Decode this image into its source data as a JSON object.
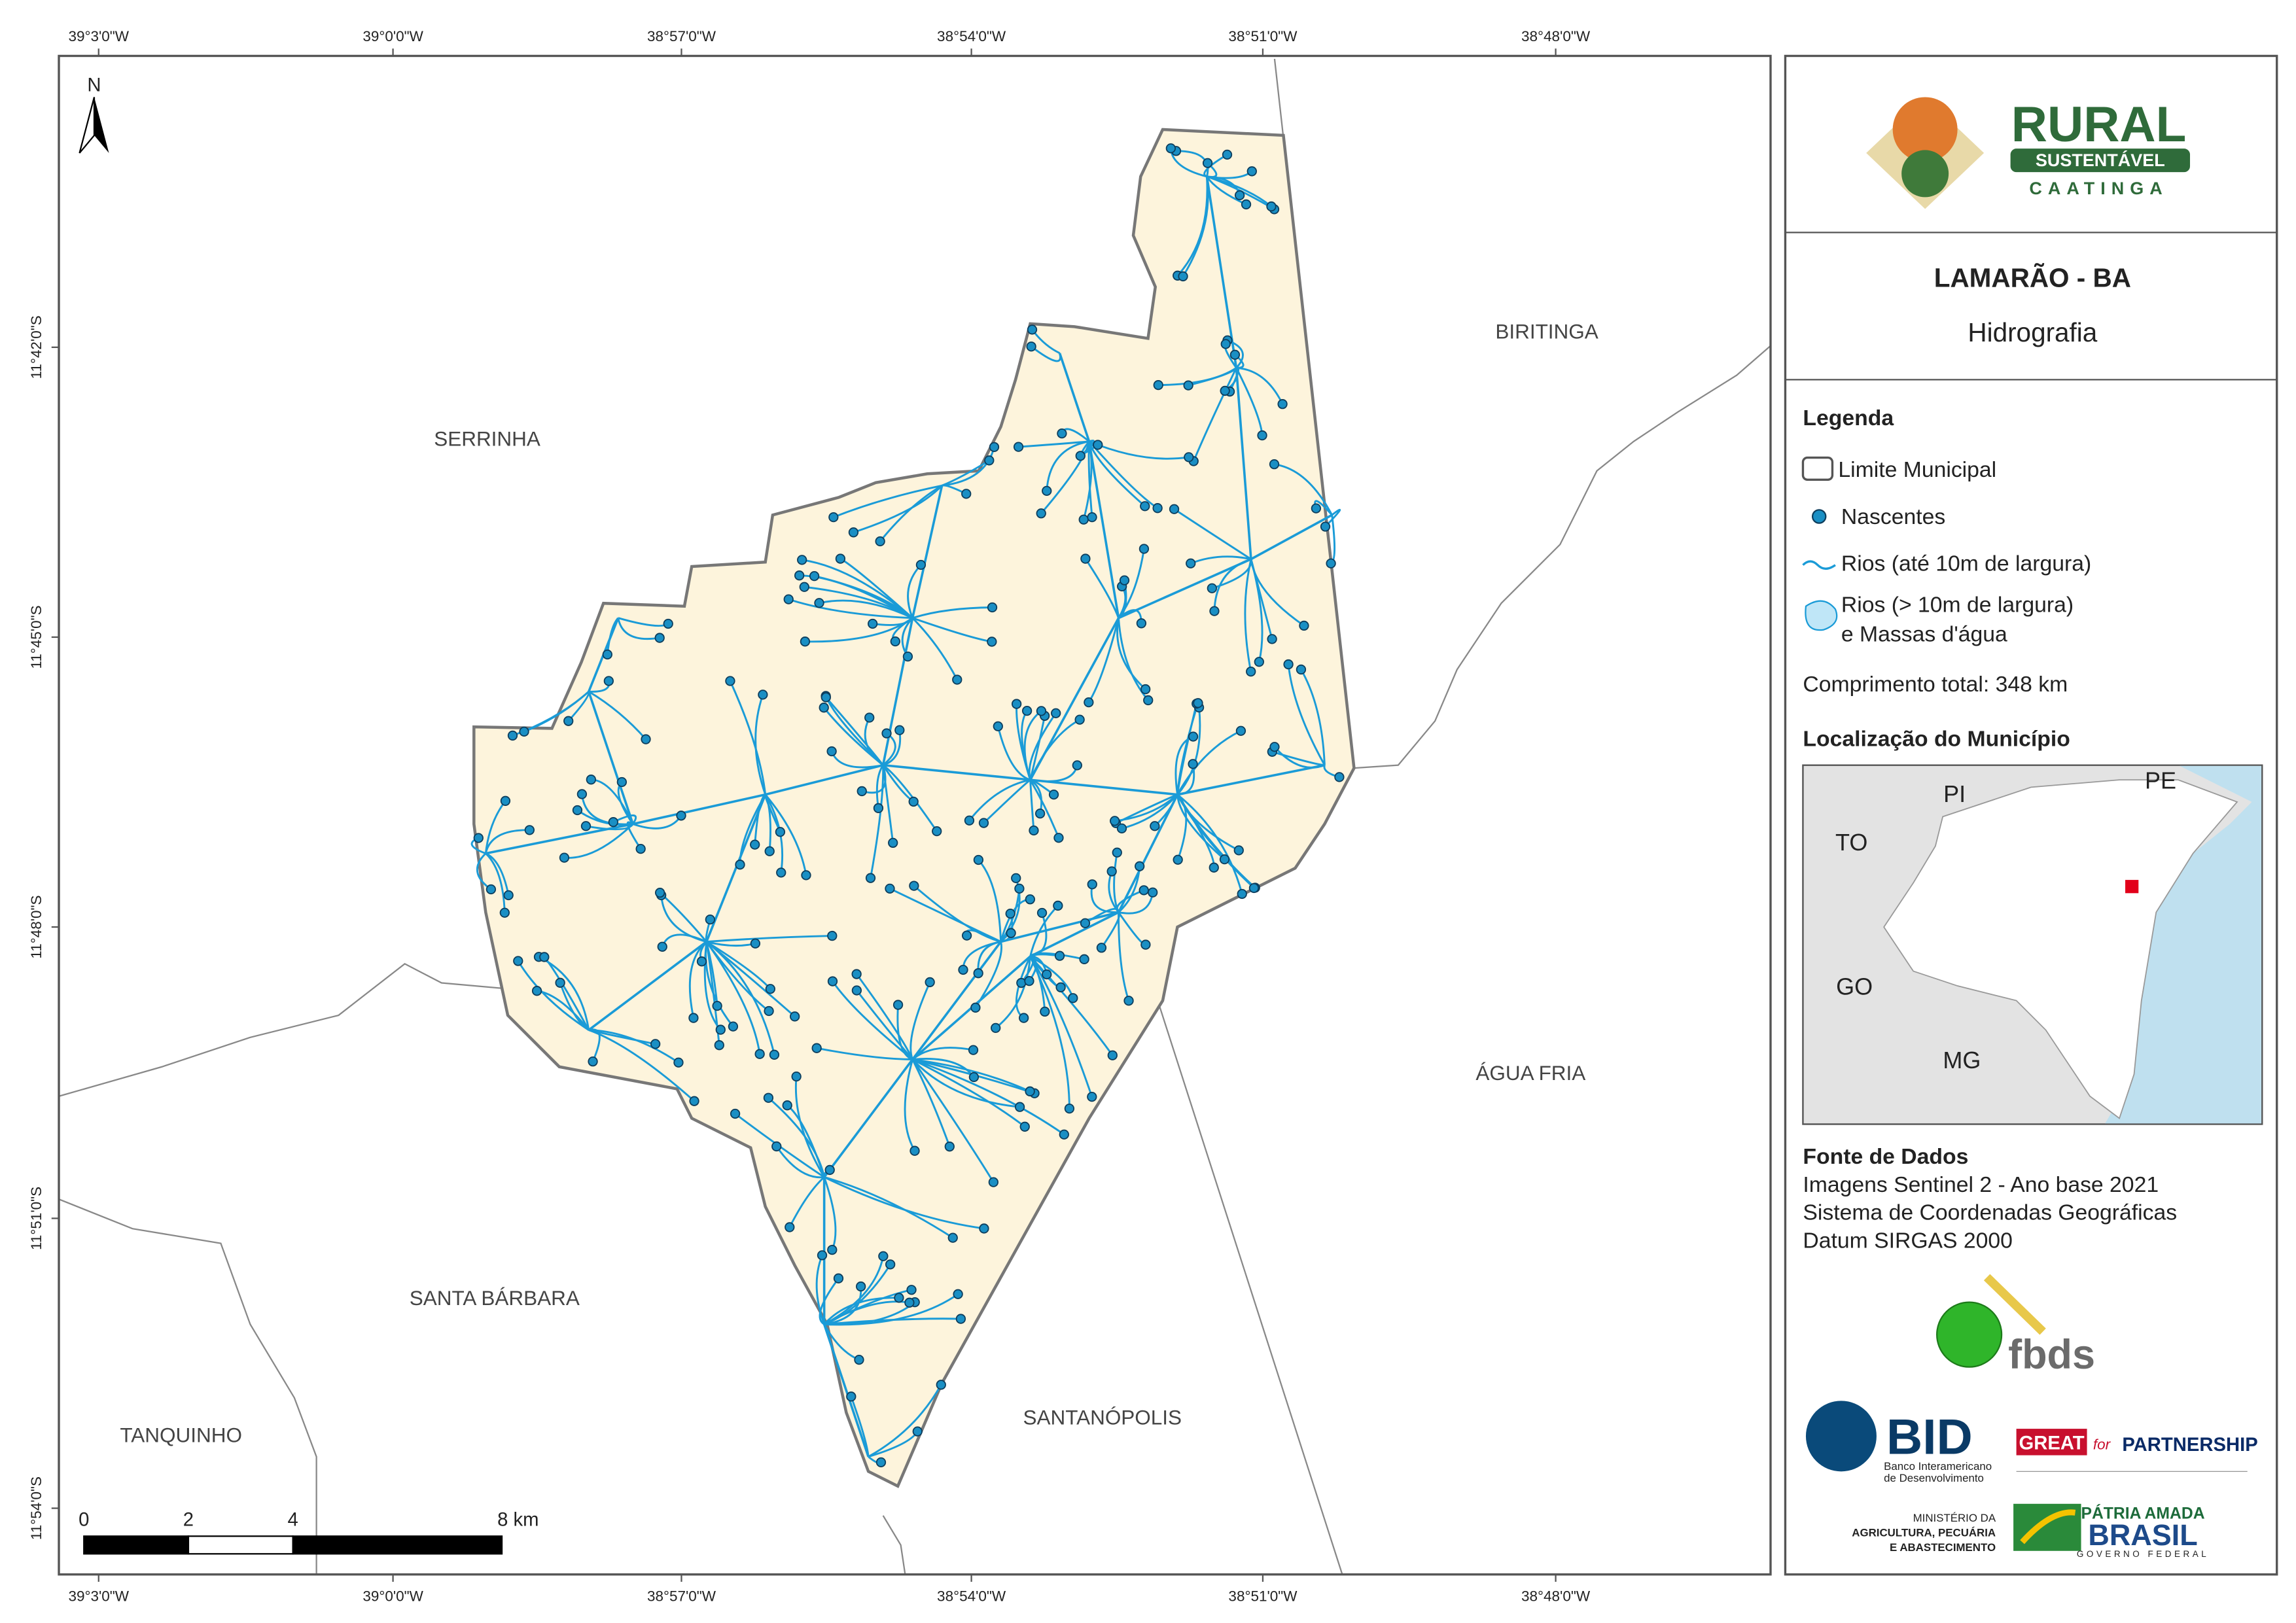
{
  "map": {
    "north": "N",
    "coordinates": {
      "top": [
        "39°3'0\"W",
        "39°0'0\"W",
        "38°57'0\"W",
        "38°54'0\"W",
        "38°51'0\"W",
        "38°48'0\"W"
      ],
      "bottom": [
        "39°3'0\"W",
        "39°0'0\"W",
        "38°57'0\"W",
        "38°54'0\"W",
        "38°51'0\"W",
        "38°48'0\"W"
      ],
      "left": [
        "11°42'0\"S",
        "11°45'0\"S",
        "11°48'0\"S",
        "11°51'0\"S",
        "11°54'0\"S"
      ]
    },
    "places": [
      "SERRINHA",
      "BIRITINGA",
      "ÁGUA FRIA",
      "SANTA BÁRBARA",
      "TANQUINHO",
      "SANTANÓPOLIS"
    ],
    "scale_bar": [
      "0",
      "2",
      "4",
      "8 km"
    ]
  },
  "panel": {
    "logo": [
      "RURAL",
      "SUSTENTÁVEL",
      "CAATINGA"
    ],
    "title": "LAMARÃO - BA",
    "subtitle": "Hidrografia",
    "legend": {
      "title": "Legenda",
      "items": [
        {
          "label": "Limite Municipal"
        },
        {
          "label": "Nascentes"
        },
        {
          "label": "Rios (até 10m de largura)"
        },
        {
          "lines": [
            "Rios (> 10m de largura)",
            "e Massas d'água"
          ]
        }
      ]
    },
    "total_length": "Comprimento total:  348 km",
    "location": {
      "title": "Localização do Município",
      "states": [
        "PI",
        "PE",
        "TO",
        "GO",
        "MG"
      ]
    },
    "source": {
      "title": "Fonte de Dados",
      "lines": [
        "Imagens Sentinel 2 - Ano base 2021",
        "Sistema de Coordenadas Geográficas",
        "Datum SIRGAS 2000"
      ]
    },
    "partners": {
      "fbds": "fbds",
      "bid": [
        "BID",
        "Banco Interamericano",
        "de Desenvolvimento"
      ],
      "great": [
        "GREAT",
        "for",
        "PARTNERSHIP"
      ],
      "ministry": [
        "MINISTÉRIO DA",
        "AGRICULTURA, PECUÁRIA",
        "E ABASTECIMENTO"
      ],
      "brasil": [
        "PÁTRIA AMADA",
        "BRASIL",
        "GOVERNO FEDERAL"
      ]
    }
  }
}
